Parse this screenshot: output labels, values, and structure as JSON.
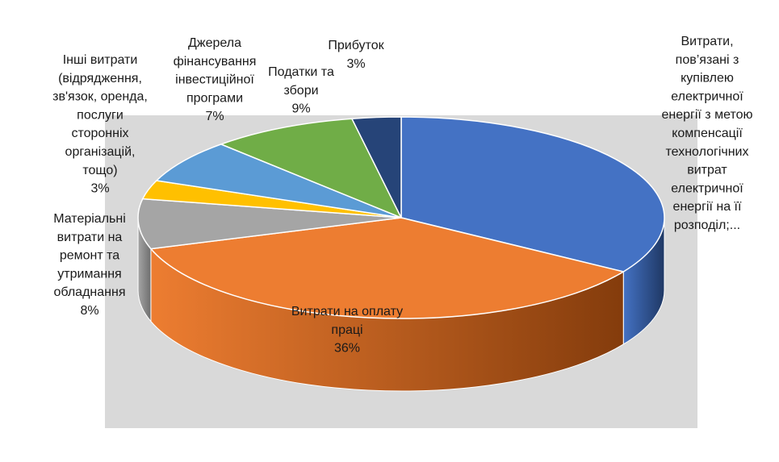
{
  "chart_data": {
    "type": "pie",
    "style": "3d",
    "title": "",
    "slices": [
      {
        "label": "Витрати, пов’язані з купівлею електричної енергії з метою компенсації технологічних витрат електричної енергії на її розподіл;...",
        "label_lines": [
          "Витрати,",
          "пов’язані з",
          "купівлею",
          "електричної",
          "енергії з метою",
          "компенсації",
          "технологічних",
          "витрат",
          "електричної",
          "енергії на її",
          "розподіл;..."
        ],
        "value": 34,
        "percent_label": "",
        "color": "#4472C4",
        "side_color": "#1F3864"
      },
      {
        "label": "Витрати на оплату праці",
        "label_lines": [
          "Витрати на оплату",
          "праці"
        ],
        "value": 36,
        "percent_label": "36%",
        "color": "#ED7D31",
        "side_color": "#843C0C"
      },
      {
        "label": "Матеріальні витрати на ремонт та утримання обладнання",
        "label_lines": [
          "Матеріальні",
          "витрати на",
          "ремонт та",
          "утримання",
          "обладнання"
        ],
        "value": 8,
        "percent_label": "8%",
        "color": "#A5A5A5",
        "side_color": "#6E6E6E"
      },
      {
        "label": "Інші витрати (відрядження, зв'язок, оренда, послуги сторонніх організацій, тощо)",
        "label_lines": [
          "Інші витрати",
          "(відрядження,",
          "зв'язок, оренда,",
          "послуги",
          "сторонніх",
          "організацій,",
          "тощо)"
        ],
        "value": 3,
        "percent_label": "3%",
        "color": "#FFC000",
        "side_color": "#B38600"
      },
      {
        "label": "Джерела фінансування інвестиційної програми",
        "label_lines": [
          "Джерела",
          "фінансування",
          "інвестиційної",
          "програми"
        ],
        "value": 7,
        "percent_label": "7%",
        "color": "#5B9BD5",
        "side_color": "#2E5E8C"
      },
      {
        "label": "Податки та збори",
        "label_lines": [
          "Податки та",
          "збори"
        ],
        "value": 9,
        "percent_label": "9%",
        "color": "#70AD47",
        "side_color": "#3F6B22"
      },
      {
        "label": "Прибуток",
        "label_lines": [
          "Прибуток"
        ],
        "value": 3,
        "percent_label": "3%",
        "color": "#264478",
        "side_color": "#13233F"
      }
    ],
    "plot_background": "#D9D9D9"
  }
}
